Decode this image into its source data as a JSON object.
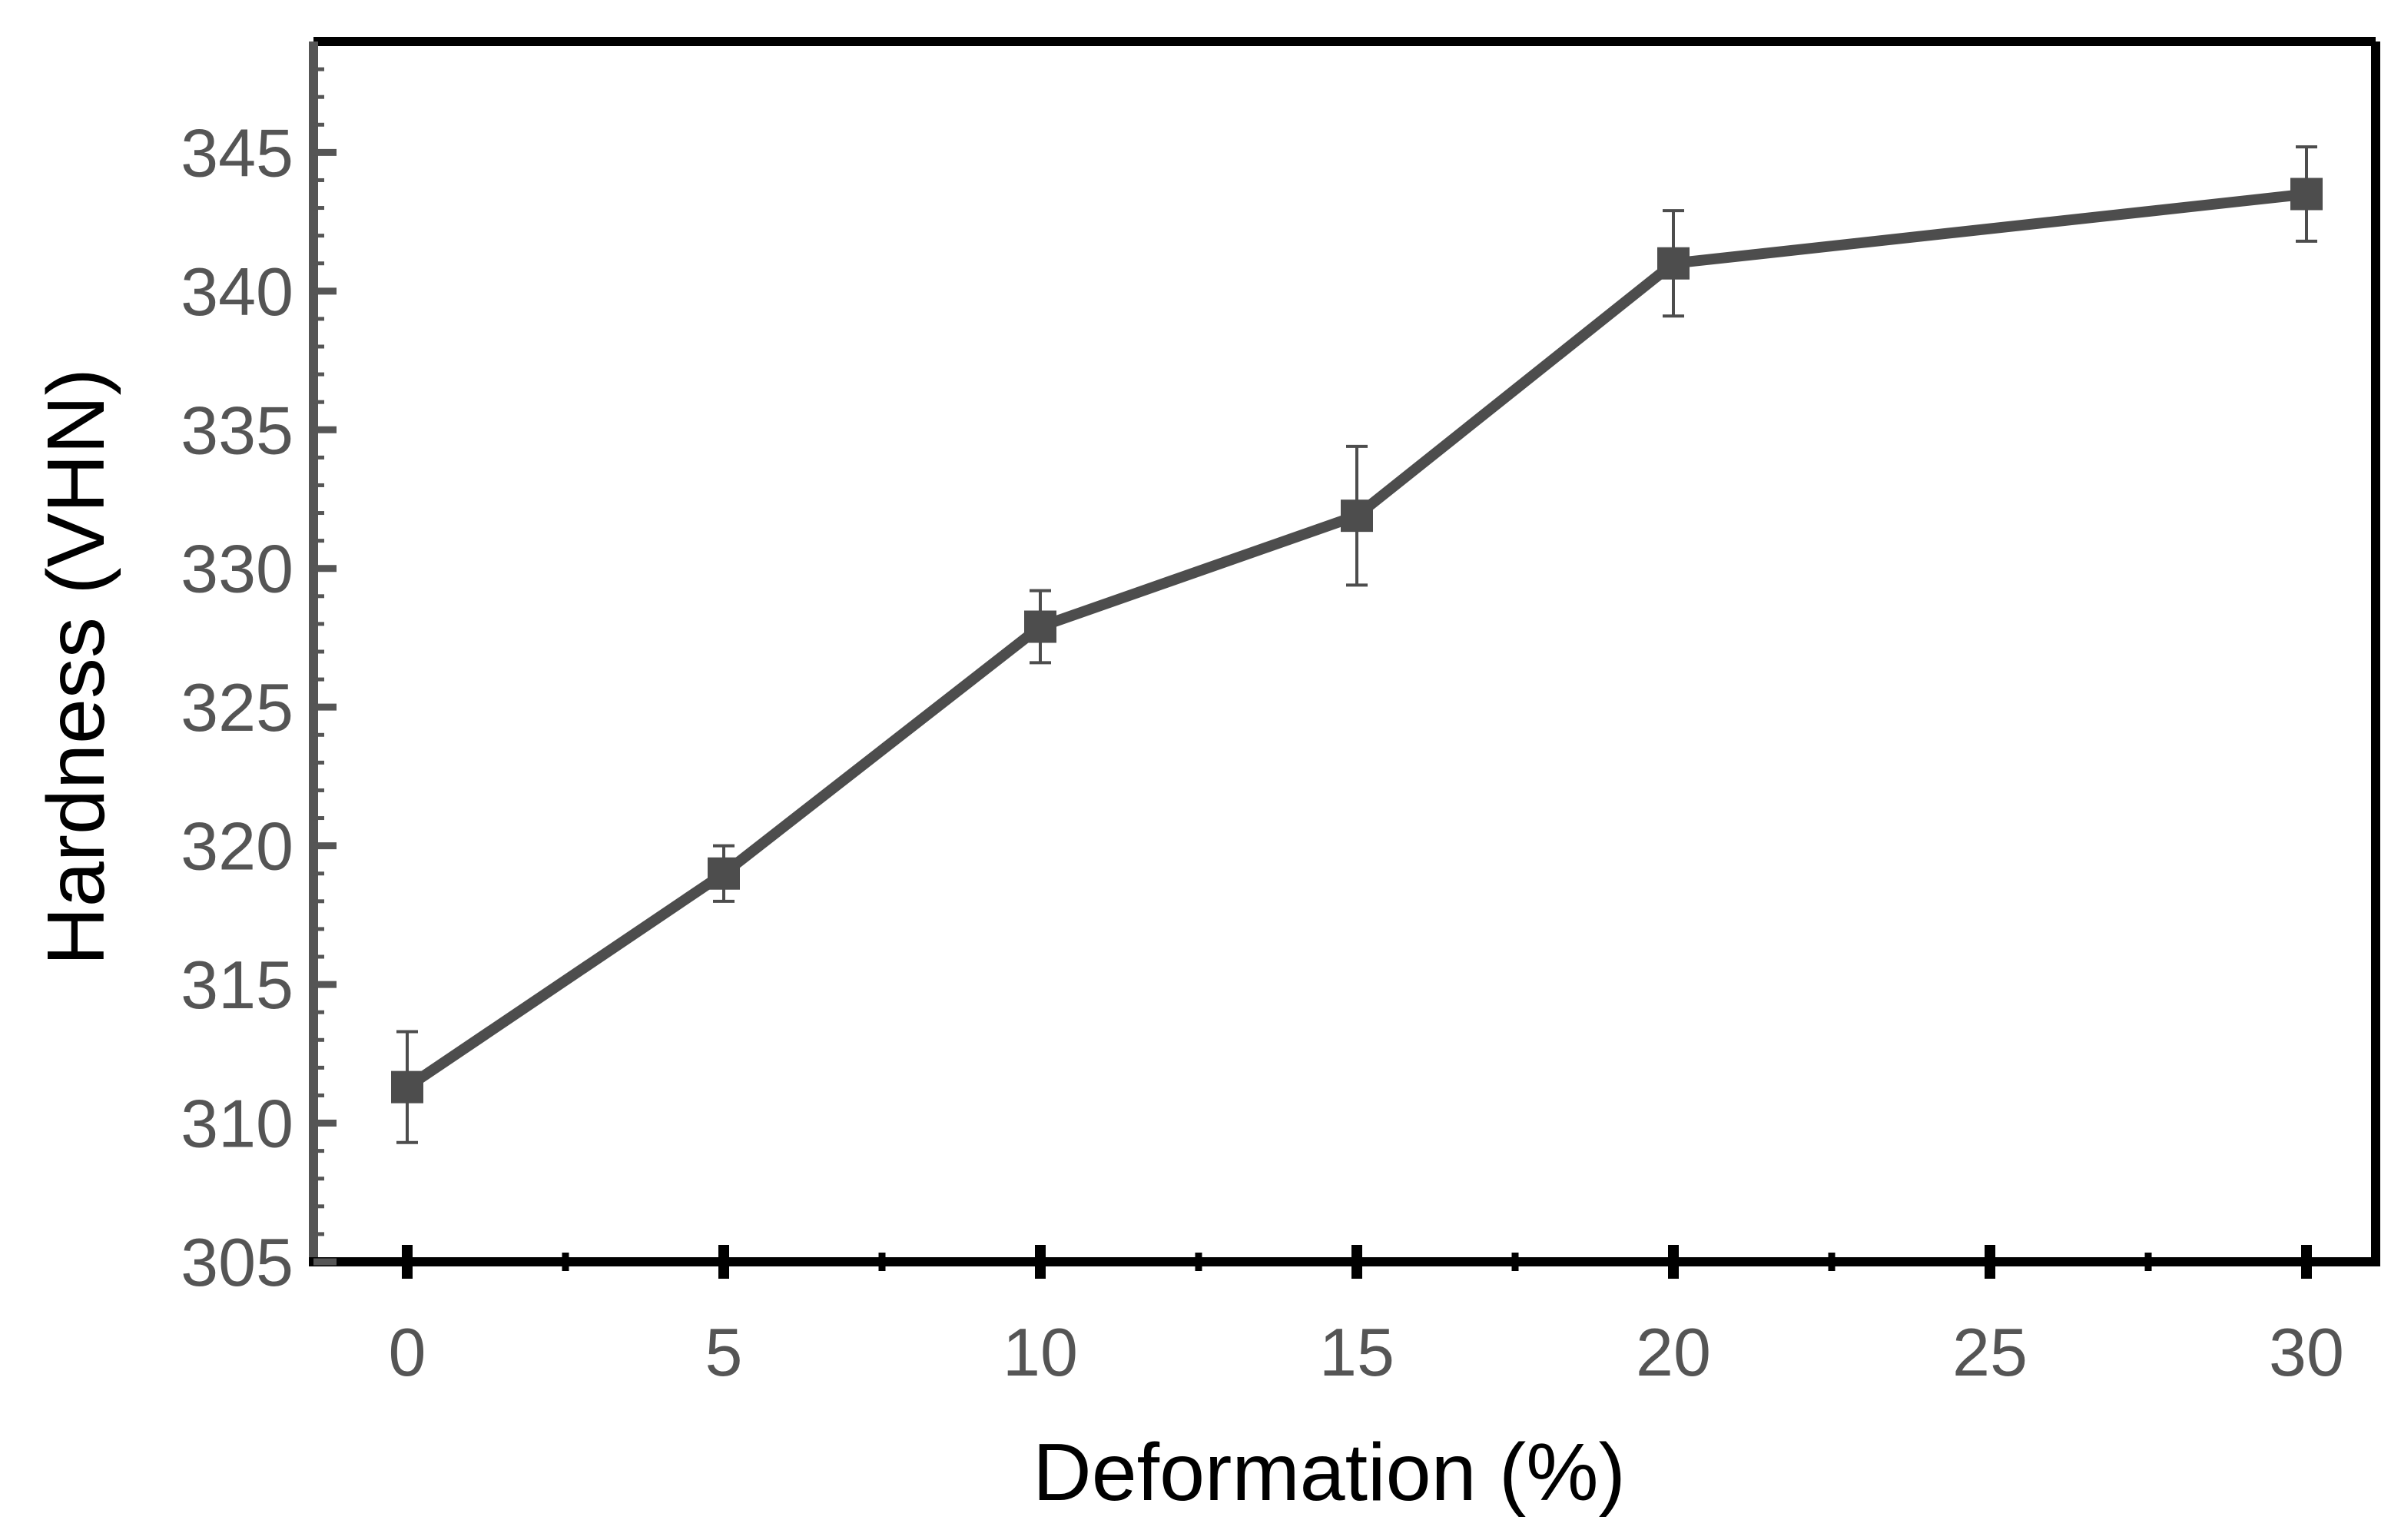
{
  "chart_data": {
    "type": "line",
    "title": "",
    "xlabel": "Deformation (%)",
    "ylabel": "Hardness (VHN)",
    "x_tick_labels": [
      "0",
      "5",
      "10",
      "15",
      "20",
      "25",
      "30"
    ],
    "y_ticks": [
      305,
      310,
      315,
      320,
      325,
      330,
      335,
      340,
      345
    ],
    "y_tick_labels": [
      "305",
      "310",
      "315",
      "320",
      "325",
      "330",
      "335",
      "340",
      "345"
    ],
    "ylim": [
      305,
      349
    ],
    "grid": false,
    "legend": "none",
    "series": [
      {
        "x": [
          "0",
          "5",
          "10",
          "15",
          "20",
          "30"
        ],
        "y": [
          311.3,
          319.0,
          327.9,
          331.9,
          341.0,
          343.5
        ],
        "error": [
          2.0,
          1.0,
          1.3,
          2.5,
          1.9,
          1.7
        ],
        "color": "#4d4d4d",
        "marker": "square"
      }
    ]
  }
}
